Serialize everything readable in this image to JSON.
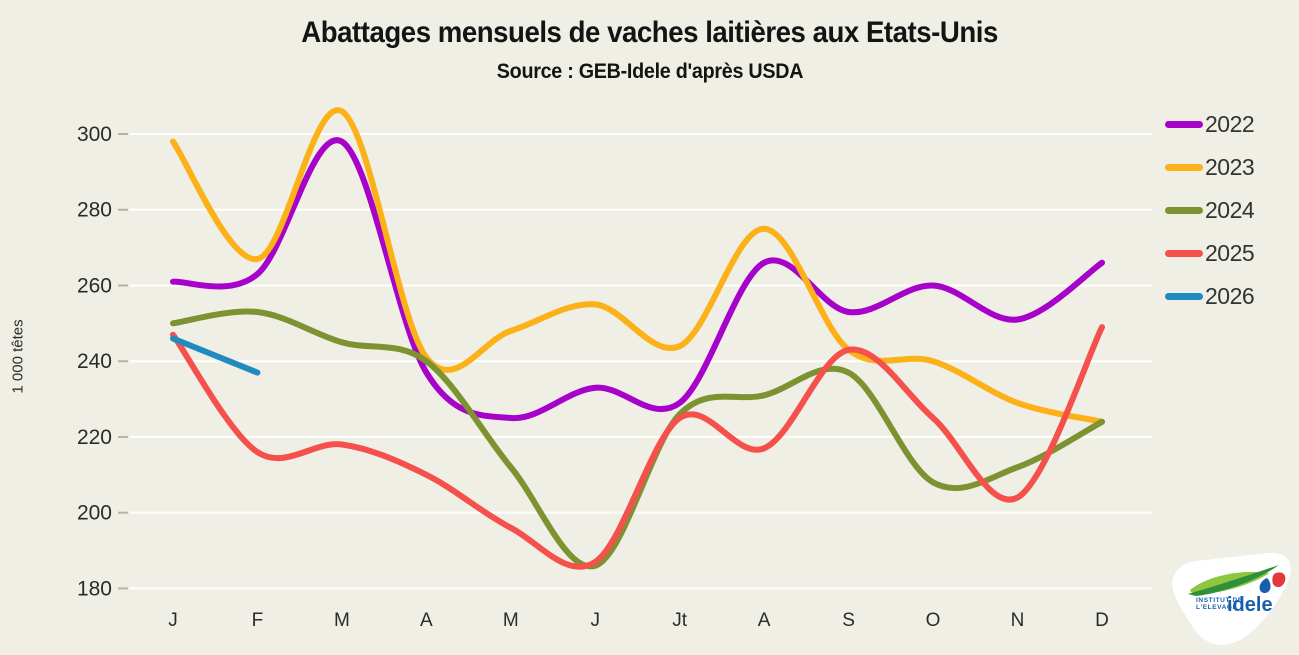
{
  "header": {
    "title": "Abattages mensuels de vaches laitières aux Etats-Unis",
    "subtitle": "Source : GEB-Idele d'après USDA"
  },
  "logo": {
    "line1": "INSTITUT DE",
    "line2": "L'ELEVAGE",
    "brand": "idele"
  },
  "chart_data": {
    "type": "line",
    "title": "Abattages mensuels de vaches laitières aux Etats-Unis",
    "subtitle": "Source : GEB-Idele d'après USDA",
    "ylabel": "1 000 têtes",
    "xlabel": "",
    "ylim": [
      180,
      300
    ],
    "y_ticks": [
      300,
      280,
      260,
      240,
      220,
      200,
      180
    ],
    "grid": "horizontal-white-lines",
    "legend_position": "right",
    "background_color": "#f0efe5",
    "x_categories": [
      "J",
      "F",
      "M",
      "A",
      "M",
      "J",
      "Jt",
      "A",
      "S",
      "O",
      "N",
      "D"
    ],
    "series": [
      {
        "name": "2022",
        "color": "#a602ca",
        "values": [
          261,
          263,
          298,
          237,
          225,
          233,
          229,
          266,
          253,
          260,
          251,
          266
        ]
      },
      {
        "name": "2023",
        "color": "#fbb117",
        "values": [
          298,
          267,
          306,
          241,
          248,
          255,
          244,
          275,
          243,
          240,
          229,
          224
        ]
      },
      {
        "name": "2024",
        "color": "#7d9230",
        "values": [
          250,
          253,
          245,
          240,
          212,
          186,
          226,
          231,
          237,
          208,
          212,
          224
        ]
      },
      {
        "name": "2025",
        "color": "#f4514c",
        "values": [
          247,
          216,
          218,
          210,
          196,
          187,
          225,
          217,
          243,
          225,
          204,
          249
        ]
      },
      {
        "name": "2026",
        "color": "#1e8cbe",
        "values": [
          246,
          237
        ]
      }
    ]
  }
}
